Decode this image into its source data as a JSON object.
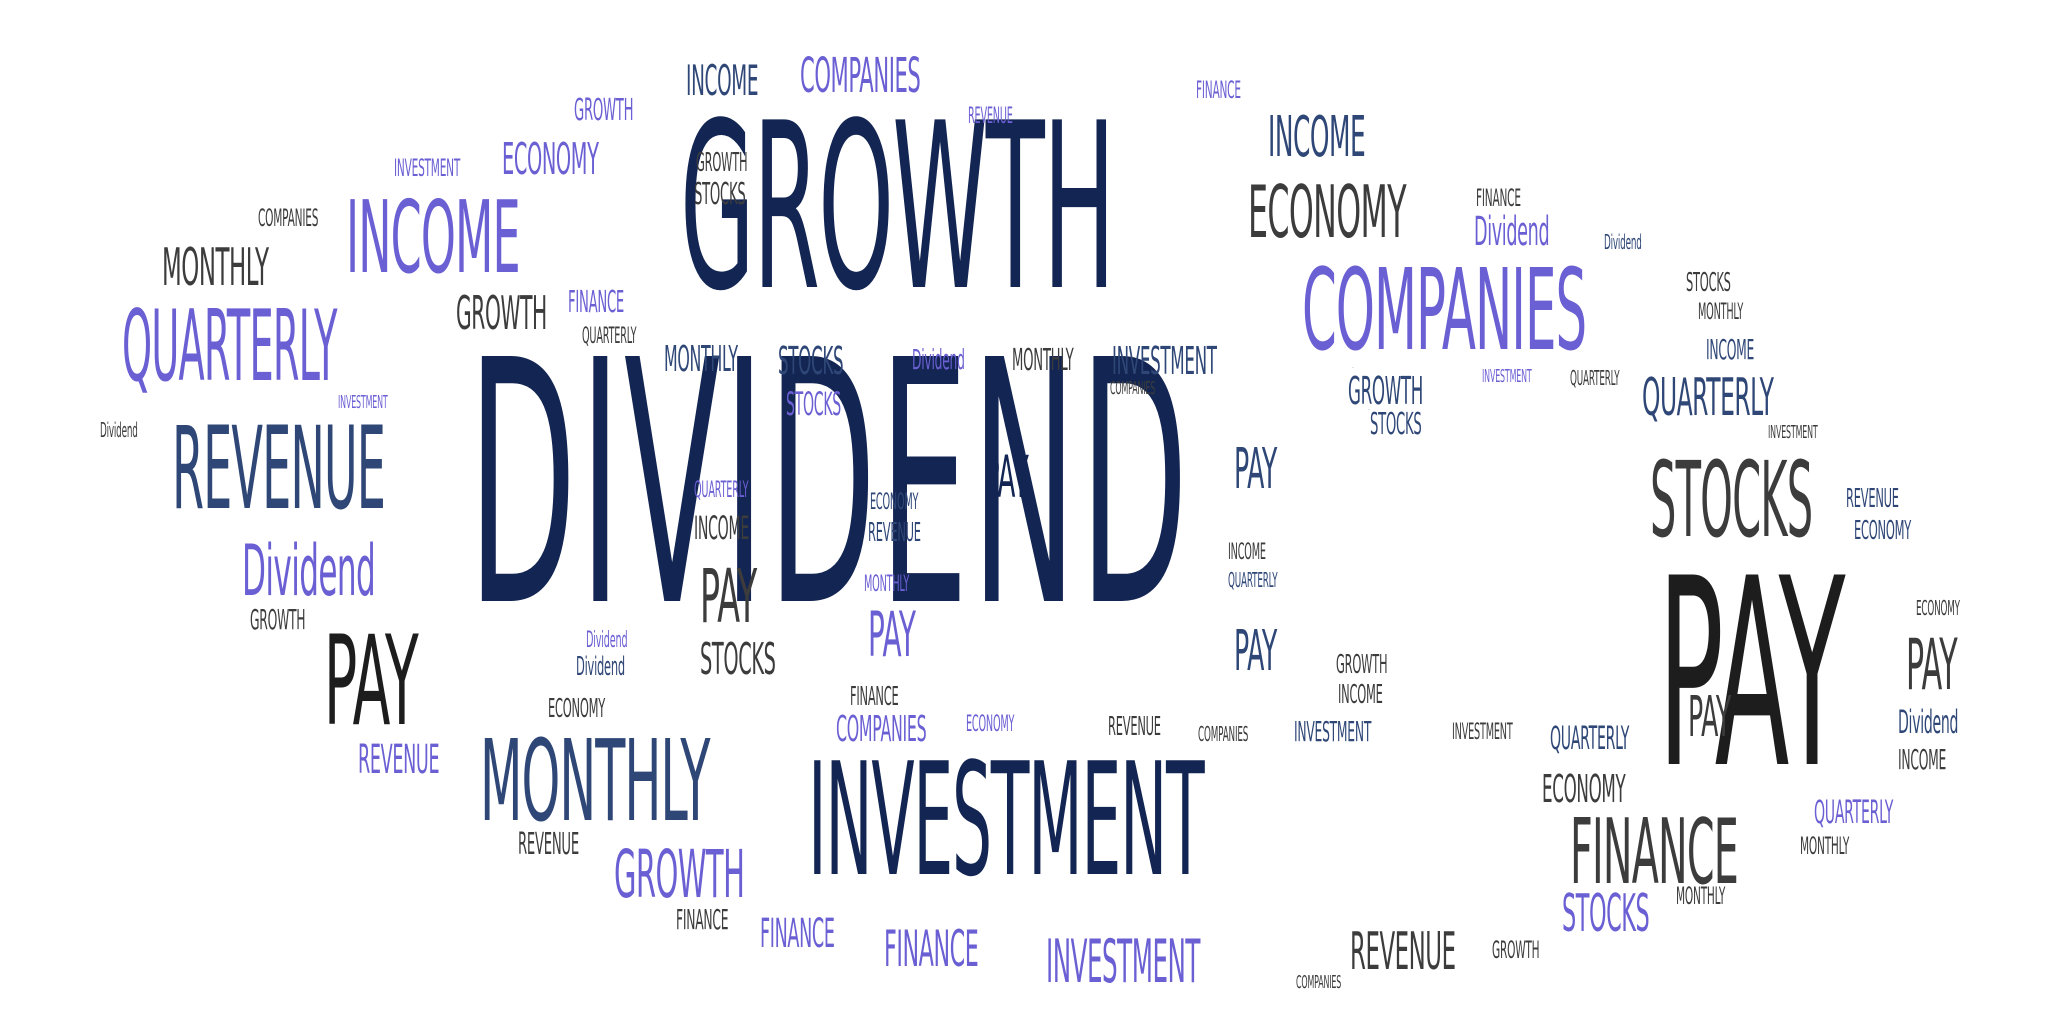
{
  "title": "",
  "colors": {
    "navy": "#132552",
    "blue": "#2f4777",
    "lavender": "#6a5fd3",
    "gray": "#3c3c3c",
    "black": "#1d1d1d",
    "background": "#ffffff"
  },
  "cloud": {
    "dividend": "DIVIDEND",
    "growth": "GROWTH",
    "investment": "INVESTMENT",
    "pay": "PAY",
    "monthly": "MONTHLY",
    "revenue": "REVENUE",
    "quarterly": "QUARTERLY",
    "income": "INCOME",
    "companies": "COMPANIES",
    "economy": "ECONOMY",
    "stocks": "STOCKS",
    "finance": "FINANCE",
    "dividend_mixed": "Dividend"
  }
}
